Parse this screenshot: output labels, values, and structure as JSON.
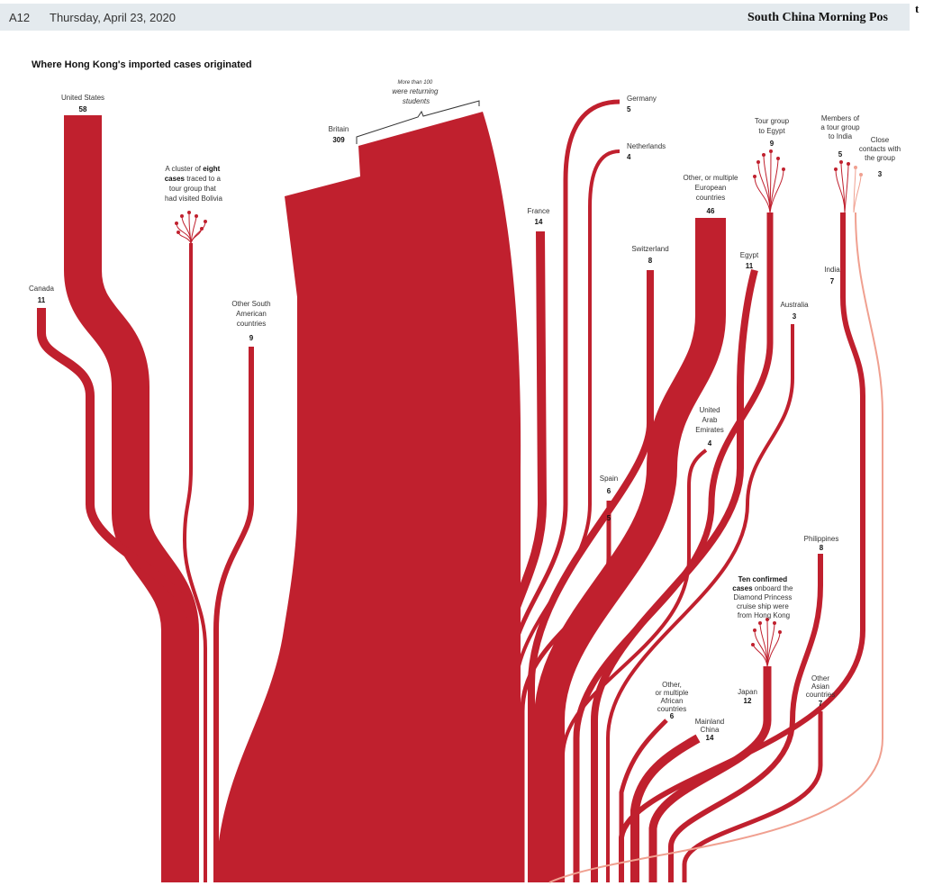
{
  "header": {
    "page_number": "A12",
    "date": "Thursday, April 23, 2020",
    "masthead": "South China Morning Pos",
    "corner_letter": "t"
  },
  "title": "Where Hong Kong's imported cases originated",
  "colors": {
    "primary": "#c0202e",
    "secondary": "#f0a090",
    "header_bg": "#e4eaee"
  },
  "origins": [
    {
      "label": "United States",
      "count": "58"
    },
    {
      "label": "Canada",
      "count": "11"
    },
    {
      "label": "Other South American countries",
      "count": "9"
    },
    {
      "label": "Britain",
      "count": "309"
    },
    {
      "label": "France",
      "count": "14"
    },
    {
      "label": "Germany",
      "count": "5"
    },
    {
      "label": "Netherlands",
      "count": "4"
    },
    {
      "label": "Switzerland",
      "count": "8"
    },
    {
      "label": "Other, or multiple European countries",
      "count": "46"
    },
    {
      "label": "Tour group to Egypt",
      "count": "9"
    },
    {
      "label": "Egypt",
      "count": "11"
    },
    {
      "label": "Members of a tour group to India",
      "count": "5"
    },
    {
      "label": "Close contacts with the group",
      "count": "3"
    },
    {
      "label": "India",
      "count": "7"
    },
    {
      "label": "Australia",
      "count": "3"
    },
    {
      "label": "Spain",
      "count": "6"
    },
    {
      "label": "United Arab Emirates",
      "count": "4"
    },
    {
      "label": "Philippines",
      "count": "8"
    },
    {
      "label": "Other, or multiple African countries",
      "count": "6"
    },
    {
      "label": "Mainland China",
      "count": "14"
    },
    {
      "label": "Japan",
      "count": "12"
    },
    {
      "label": "Other Asian countries",
      "count": "7"
    }
  ],
  "annotations": {
    "bolivia_prefix": "A cluster of ",
    "bolivia_bold": "eight cases",
    "bolivia_rest_1": "traced to a",
    "bolivia_rest_2": "tour group that",
    "bolivia_rest_3": "had visited Bolivia",
    "students_1": "More than 100",
    "students_2": "were returning",
    "students_3": "students",
    "spain_second": "5",
    "diamond_bold_1": "Ten confirmed",
    "diamond_bold_2": "cases",
    "diamond_rest_1": "onboard the",
    "diamond_rest_2": "Diamond Princess",
    "diamond_rest_3": "cruise ship were",
    "diamond_rest_4": "from Hong Kong"
  }
}
